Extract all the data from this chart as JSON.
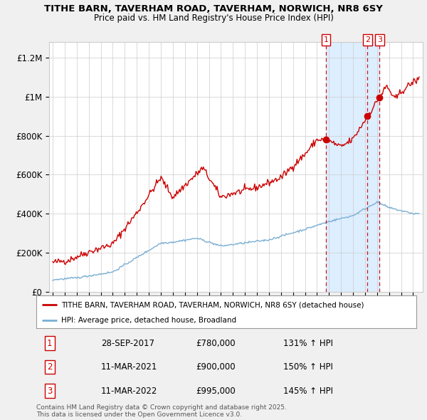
{
  "title1": "TITHE BARN, TAVERHAM ROAD, TAVERHAM, NORWICH, NR8 6SY",
  "title2": "Price paid vs. HM Land Registry's House Price Index (HPI)",
  "ylabel_ticks": [
    "£0",
    "£200K",
    "£400K",
    "£600K",
    "£800K",
    "£1M",
    "£1.2M"
  ],
  "ytick_vals": [
    0,
    200000,
    400000,
    600000,
    800000,
    1000000,
    1200000
  ],
  "ylim": [
    0,
    1280000
  ],
  "xlim_start": 1994.7,
  "xlim_end": 2025.8,
  "red_color": "#cc0000",
  "blue_color": "#7aafd4",
  "shade_color": "#ddeeff",
  "vline_color": "#cc0000",
  "grid_color": "#cccccc",
  "legend_label_red": "TITHE BARN, TAVERHAM ROAD, TAVERHAM, NORWICH, NR8 6SY (detached house)",
  "legend_label_blue": "HPI: Average price, detached house, Broadland",
  "transactions": [
    {
      "num": 1,
      "date": "28-SEP-2017",
      "price": "£780,000",
      "hpi": "131% ↑ HPI",
      "x": 2017.75
    },
    {
      "num": 2,
      "date": "11-MAR-2021",
      "price": "£900,000",
      "hpi": "150% ↑ HPI",
      "x": 2021.2
    },
    {
      "num": 3,
      "date": "11-MAR-2022",
      "price": "£995,000",
      "hpi": "145% ↑ HPI",
      "x": 2022.2
    }
  ],
  "footer": "Contains HM Land Registry data © Crown copyright and database right 2025.\nThis data is licensed under the Open Government Licence v3.0.",
  "bg_color": "#f0f0f0",
  "plot_bg": "#ffffff"
}
